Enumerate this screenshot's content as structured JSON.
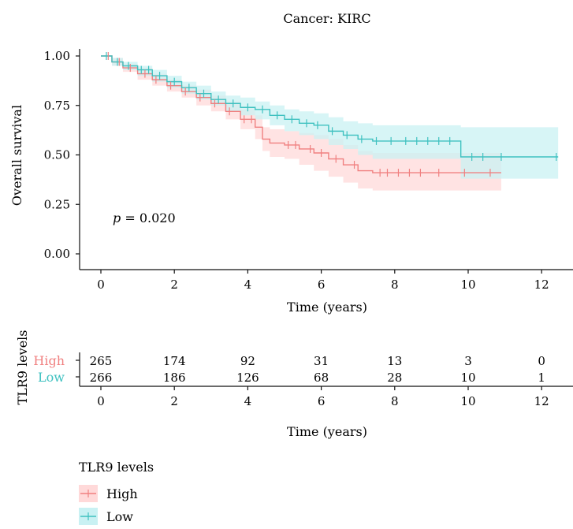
{
  "chart_data": {
    "type": "line",
    "title": "Cancer: KIRC",
    "xlabel": "Time (years)",
    "ylabel": "Overall survival",
    "xlim": [
      0,
      12.5
    ],
    "ylim": [
      0,
      1
    ],
    "x_ticks": [
      "0",
      "2",
      "4",
      "6",
      "8",
      "10",
      "12"
    ],
    "y_ticks": [
      "0.00",
      "0.25",
      "0.50",
      "0.75",
      "1.00"
    ],
    "annotation_p_label": "p",
    "annotation_p_value": "= 0.020",
    "legend_title": "TLR9 levels",
    "series": [
      {
        "name": "High",
        "color": "#f08080",
        "band_color": "#ffd9d9",
        "x": [
          0,
          0.3,
          0.6,
          1.0,
          1.4,
          1.8,
          2.2,
          2.6,
          3.0,
          3.4,
          3.8,
          4.2,
          4.4,
          4.6,
          5.0,
          5.4,
          5.8,
          6.2,
          6.6,
          7.0,
          7.4,
          10.9
        ],
        "y": [
          1.0,
          0.97,
          0.94,
          0.91,
          0.88,
          0.85,
          0.82,
          0.79,
          0.76,
          0.72,
          0.68,
          0.64,
          0.58,
          0.56,
          0.55,
          0.53,
          0.51,
          0.48,
          0.45,
          0.42,
          0.41,
          0.41
        ],
        "lower": [
          1.0,
          0.95,
          0.92,
          0.88,
          0.85,
          0.82,
          0.79,
          0.75,
          0.72,
          0.68,
          0.63,
          0.58,
          0.52,
          0.49,
          0.48,
          0.45,
          0.42,
          0.39,
          0.36,
          0.33,
          0.32,
          0.32
        ],
        "upper": [
          1.0,
          0.99,
          0.96,
          0.94,
          0.91,
          0.88,
          0.85,
          0.83,
          0.8,
          0.77,
          0.73,
          0.7,
          0.64,
          0.63,
          0.62,
          0.61,
          0.6,
          0.58,
          0.55,
          0.52,
          0.51,
          0.51
        ],
        "censor_x": [
          0.2,
          0.5,
          0.8,
          1.2,
          1.5,
          1.9,
          2.3,
          2.7,
          3.1,
          3.5,
          3.9,
          4.1,
          5.1,
          5.3,
          5.7,
          6.0,
          6.4,
          6.9,
          7.6,
          7.8,
          8.1,
          8.4,
          8.7,
          9.2,
          9.9,
          10.6
        ]
      },
      {
        "name": "Low",
        "color": "#3fc1c0",
        "band_color": "#c9f1f3",
        "x": [
          0,
          0.3,
          0.6,
          1.0,
          1.4,
          1.8,
          2.2,
          2.6,
          3.0,
          3.4,
          3.8,
          4.2,
          4.6,
          5.0,
          5.4,
          5.8,
          6.2,
          6.6,
          7.0,
          7.4,
          9.8,
          12.45
        ],
        "y": [
          1.0,
          0.97,
          0.95,
          0.93,
          0.9,
          0.87,
          0.84,
          0.81,
          0.78,
          0.76,
          0.74,
          0.73,
          0.7,
          0.68,
          0.66,
          0.65,
          0.62,
          0.6,
          0.58,
          0.57,
          0.49,
          0.49
        ],
        "lower": [
          1.0,
          0.95,
          0.93,
          0.9,
          0.87,
          0.84,
          0.81,
          0.78,
          0.75,
          0.72,
          0.7,
          0.68,
          0.65,
          0.62,
          0.6,
          0.58,
          0.55,
          0.53,
          0.5,
          0.48,
          0.38,
          0.38
        ],
        "upper": [
          1.0,
          0.99,
          0.97,
          0.95,
          0.93,
          0.9,
          0.87,
          0.85,
          0.82,
          0.8,
          0.79,
          0.77,
          0.75,
          0.73,
          0.72,
          0.71,
          0.69,
          0.67,
          0.66,
          0.65,
          0.64,
          0.64
        ],
        "censor_x": [
          0.15,
          0.45,
          0.75,
          1.1,
          1.3,
          1.6,
          2.0,
          2.4,
          2.8,
          3.2,
          3.6,
          4.0,
          4.4,
          4.8,
          5.2,
          5.6,
          5.9,
          6.3,
          6.7,
          7.1,
          7.5,
          7.9,
          8.3,
          8.6,
          8.9,
          9.2,
          9.5,
          10.1,
          10.4,
          10.9,
          12.4
        ]
      }
    ],
    "risk_table": {
      "axis_label": "TLR9 levels",
      "groups": [
        {
          "name": "High",
          "values": [
            "265",
            "174",
            "92",
            "31",
            "13",
            "3",
            "0"
          ]
        },
        {
          "name": "Low",
          "values": [
            "266",
            "186",
            "126",
            "68",
            "28",
            "10",
            "1"
          ]
        }
      ]
    },
    "grid": false,
    "legend_position": "bottom"
  }
}
